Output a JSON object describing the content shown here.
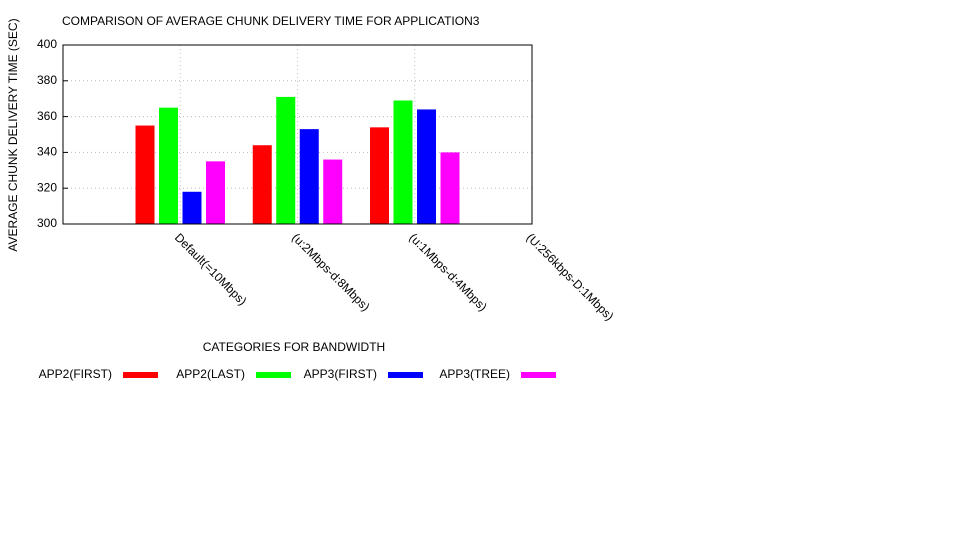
{
  "chart_data": {
    "type": "bar",
    "title": "COMPARISON OF AVERAGE CHUNK DELIVERY TIME FOR APPLICATION3",
    "x_label": "CATEGORIES FOR BANDWIDTH",
    "y_label": "AVERAGE CHUNK DELIVERY TIME (SEC)",
    "categories": [
      "Default(=10Mbps)",
      "(u:2Mbps-d:8Mbps)",
      "(u:1Mbps-d:4Mbps)",
      "(U:256kbps-D:1Mbps)"
    ],
    "series": [
      {
        "name": "APP2(FIRST)",
        "color": "#ff0000",
        "values": [
          355,
          344,
          354,
          null
        ]
      },
      {
        "name": "APP2(LAST)",
        "color": "#00ff00",
        "values": [
          365,
          371,
          369,
          null
        ]
      },
      {
        "name": "APP3(FIRST)",
        "color": "#0000ff",
        "values": [
          318,
          353,
          364,
          null
        ]
      },
      {
        "name": "APP3(TREE)",
        "color": "#ff00ff",
        "values": [
          335,
          336,
          340,
          null
        ]
      }
    ],
    "ylim": [
      300,
      400
    ],
    "yticks": [
      300,
      320,
      340,
      360,
      380,
      400
    ],
    "grid": true
  }
}
